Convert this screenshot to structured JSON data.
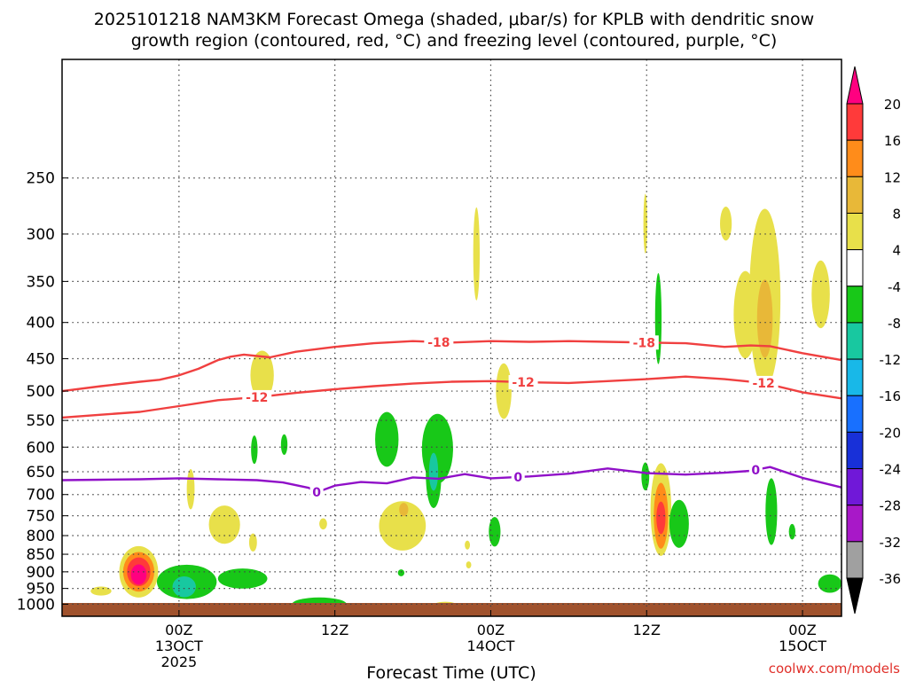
{
  "chart_data": {
    "type": "heatmap",
    "title_line1": "2025101218 NAM3KM Forecast Omega (shaded, μbar/s) for KPLB with dendritic snow",
    "title_line2": "growth region (contoured, red, °C) and freezing level (contoured, purple, °C)",
    "xlabel": "Forecast Time (UTC)",
    "credit": "coolwx.com/models",
    "xlim": [
      -9,
      51
    ],
    "ylim": [
      1040,
      170
    ],
    "y_ticks": [
      250,
      300,
      350,
      400,
      450,
      500,
      550,
      600,
      650,
      700,
      750,
      800,
      850,
      900,
      950,
      1000
    ],
    "x_ticks": [
      {
        "x": 0,
        "line1": "00Z",
        "line2": "13OCT",
        "line3": "2025"
      },
      {
        "x": 12,
        "line1": "12Z",
        "line2": "",
        "line3": ""
      },
      {
        "x": 24,
        "line1": "00Z",
        "line2": "14OCT",
        "line3": ""
      },
      {
        "x": 36,
        "line1": "12Z",
        "line2": "",
        "line3": ""
      },
      {
        "x": 48,
        "line1": "00Z",
        "line2": "15OCT",
        "line3": ""
      }
    ],
    "colorbar": {
      "labels": [
        "20",
        "16",
        "12",
        "8",
        "4",
        "-4",
        "-8",
        "-12",
        "-16",
        "-20",
        "-24",
        "-28",
        "-32",
        "-36"
      ],
      "colors": [
        "#ff0080",
        "#ff3a3a",
        "#ff8c1a",
        "#e8b838",
        "#e8e04a",
        "#ffffff",
        "#18c818",
        "#18c8a0",
        "#18b8e8",
        "#1870ff",
        "#1830d8",
        "#7018d8",
        "#a818c8",
        "#a0a0a0",
        "#000000"
      ]
    },
    "omega_areas": [
      {
        "x": -3.1,
        "p": 900,
        "rx": 1.5,
        "rp": 75,
        "value": 4,
        "color": "#e8e04a"
      },
      {
        "x": -3.1,
        "p": 900,
        "rx": 1.2,
        "rp": 58,
        "value": 12,
        "color": "#ff8c1a"
      },
      {
        "x": -3.1,
        "p": 900,
        "rx": 0.9,
        "rp": 42,
        "value": 16,
        "color": "#ff3a3a"
      },
      {
        "x": -3.1,
        "p": 908,
        "rx": 0.6,
        "rp": 30,
        "value": 20,
        "color": "#ff0080"
      },
      {
        "x": -6.0,
        "p": 958,
        "rx": 0.8,
        "rp": 14,
        "value": 4,
        "color": "#e8e04a"
      },
      {
        "x": 0.6,
        "p": 930,
        "rx": 2.3,
        "rp": 52,
        "value": -4,
        "color": "#18c818"
      },
      {
        "x": 4.9,
        "p": 920,
        "rx": 1.9,
        "rp": 30,
        "value": -4,
        "color": "#18c818"
      },
      {
        "x": 0.4,
        "p": 945,
        "rx": 0.9,
        "rp": 32,
        "value": -8,
        "color": "#18c8a0"
      },
      {
        "x": 3.5,
        "p": 772,
        "rx": 1.2,
        "rp": 48,
        "value": 4,
        "color": "#e8e04a"
      },
      {
        "x": 0.9,
        "p": 688,
        "rx": 0.3,
        "rp": 45,
        "value": 4,
        "color": "#e8e04a"
      },
      {
        "x": 6.4,
        "p": 475,
        "rx": 0.9,
        "rp": 38,
        "value": 4,
        "color": "#e8e04a"
      },
      {
        "x": 5.7,
        "p": 818,
        "rx": 0.3,
        "rp": 24,
        "value": 4,
        "color": "#e8e04a"
      },
      {
        "x": 5.8,
        "p": 605,
        "rx": 0.25,
        "rp": 28,
        "value": -4,
        "color": "#18c818"
      },
      {
        "x": 8.1,
        "p": 595,
        "rx": 0.25,
        "rp": 20,
        "value": -4,
        "color": "#18c818"
      },
      {
        "x": 11.1,
        "p": 770,
        "rx": 0.3,
        "rp": 14,
        "value": 4,
        "color": "#e8e04a"
      },
      {
        "x": 10.8,
        "p": 1000,
        "rx": 2.1,
        "rp": 22,
        "value": -4,
        "color": "#18c818"
      },
      {
        "x": 17.2,
        "p": 775,
        "rx": 1.8,
        "rp": 62,
        "value": 4,
        "color": "#e8e04a"
      },
      {
        "x": 17.3,
        "p": 735,
        "rx": 0.35,
        "rp": 16,
        "value": 8,
        "color": "#e8b838"
      },
      {
        "x": 16.0,
        "p": 585,
        "rx": 0.9,
        "rp": 52,
        "value": -4,
        "color": "#18c818"
      },
      {
        "x": 19.9,
        "p": 603,
        "rx": 1.2,
        "rp": 68,
        "value": -4,
        "color": "#18c818"
      },
      {
        "x": 19.6,
        "p": 655,
        "rx": 0.6,
        "rp": 72,
        "value": -4,
        "color": "#18c818"
      },
      {
        "x": 19.6,
        "p": 650,
        "rx": 0.35,
        "rp": 40,
        "value": -8,
        "color": "#18c8a0"
      },
      {
        "x": 17.1,
        "p": 903,
        "rx": 0.25,
        "rp": 10,
        "value": -4,
        "color": "#18c818"
      },
      {
        "x": 22.2,
        "p": 825,
        "rx": 0.2,
        "rp": 12,
        "value": 4,
        "color": "#e8e04a"
      },
      {
        "x": 22.3,
        "p": 880,
        "rx": 0.2,
        "rp": 10,
        "value": 4,
        "color": "#e8e04a"
      },
      {
        "x": 20.5,
        "p": 1000,
        "rx": 0.8,
        "rp": 8,
        "value": 4,
        "color": "#e8e04a"
      },
      {
        "x": 24.3,
        "p": 790,
        "rx": 0.45,
        "rp": 38,
        "value": -4,
        "color": "#18c818"
      },
      {
        "x": 22.9,
        "p": 320,
        "rx": 0.25,
        "rp": 48,
        "value": 4,
        "color": "#e8e04a"
      },
      {
        "x": 25.0,
        "p": 500,
        "rx": 0.6,
        "rp": 45,
        "value": 4,
        "color": "#e8e04a"
      },
      {
        "x": 35.9,
        "p": 290,
        "rx": 0.15,
        "rp": 28,
        "value": 4,
        "color": "#e8e04a"
      },
      {
        "x": 36.9,
        "p": 395,
        "rx": 0.25,
        "rp": 58,
        "value": -4,
        "color": "#18c818"
      },
      {
        "x": 35.9,
        "p": 660,
        "rx": 0.3,
        "rp": 30,
        "value": -4,
        "color": "#18c818"
      },
      {
        "x": 37.1,
        "p": 735,
        "rx": 0.8,
        "rp": 110,
        "value": 4,
        "color": "#e8e04a"
      },
      {
        "x": 37.1,
        "p": 750,
        "rx": 0.55,
        "rp": 80,
        "value": 12,
        "color": "#ff8c1a"
      },
      {
        "x": 37.1,
        "p": 755,
        "rx": 0.35,
        "rp": 40,
        "value": 16,
        "color": "#ff3a3a"
      },
      {
        "x": 38.5,
        "p": 770,
        "rx": 0.75,
        "rp": 60,
        "value": -4,
        "color": "#18c818"
      },
      {
        "x": 42.1,
        "p": 290,
        "rx": 0.45,
        "rp": 16,
        "value": 4,
        "color": "#e8e04a"
      },
      {
        "x": 43.6,
        "p": 390,
        "rx": 0.9,
        "rp": 55,
        "value": 4,
        "color": "#e8e04a"
      },
      {
        "x": 45.1,
        "p": 370,
        "rx": 1.2,
        "rp": 105,
        "value": 4,
        "color": "#e8e04a"
      },
      {
        "x": 45.1,
        "p": 395,
        "rx": 0.6,
        "rp": 50,
        "value": 8,
        "color": "#e8b838"
      },
      {
        "x": 45.6,
        "p": 740,
        "rx": 0.45,
        "rp": 80,
        "value": -4,
        "color": "#18c818"
      },
      {
        "x": 47.2,
        "p": 790,
        "rx": 0.25,
        "rp": 20,
        "value": -4,
        "color": "#18c818"
      },
      {
        "x": 49.4,
        "p": 365,
        "rx": 0.7,
        "rp": 40,
        "value": 4,
        "color": "#e8e04a"
      },
      {
        "x": 50.1,
        "p": 935,
        "rx": 0.9,
        "rp": 28,
        "value": -4,
        "color": "#18c818"
      }
    ],
    "series": [
      {
        "name": "-18°C isotherm",
        "color": "#f04040",
        "label": "-18",
        "label_at": [
          20,
          35.8
        ],
        "x": [
          -9,
          -6,
          -3,
          -1.5,
          0,
          1.5,
          3,
          4,
          5,
          7,
          9,
          12,
          15,
          18,
          21,
          24,
          27,
          30,
          33,
          36,
          39,
          42,
          44,
          45.5,
          48,
          51
        ],
        "p": [
          500,
          492,
          485,
          482,
          475,
          465,
          452,
          447,
          444,
          448,
          440,
          433,
          428,
          425,
          427,
          425,
          426,
          425,
          426,
          427,
          428,
          433,
          431,
          432,
          442,
          452
        ]
      },
      {
        "name": "-12°C isotherm",
        "color": "#f04040",
        "label": "-12",
        "label_at": [
          6,
          26.5,
          45
        ],
        "x": [
          -9,
          -6,
          -3,
          0,
          3,
          6,
          9,
          12,
          15,
          18,
          21,
          24,
          27,
          30,
          33,
          36,
          39,
          42,
          45,
          48,
          51
        ],
        "p": [
          545,
          540,
          535,
          525,
          515,
          510,
          503,
          497,
          492,
          488,
          485,
          484,
          486,
          487,
          484,
          481,
          477,
          481,
          487,
          502,
          512
        ]
      },
      {
        "name": "0°C freezing level",
        "color": "#9010c8",
        "label": "0",
        "label_at": [
          10.6,
          26.1,
          44.4
        ],
        "x": [
          -9,
          -6,
          -3,
          0,
          3,
          6,
          8,
          10,
          10.6,
          12,
          14,
          16,
          18,
          20,
          22,
          24,
          27,
          30,
          33,
          36,
          39,
          42,
          44,
          45.5,
          48,
          51
        ],
        "p": [
          668,
          667,
          666,
          664,
          666,
          668,
          673,
          685,
          695,
          680,
          672,
          675,
          662,
          665,
          655,
          664,
          660,
          654,
          643,
          653,
          656,
          652,
          648,
          640,
          663,
          684
        ]
      }
    ]
  }
}
